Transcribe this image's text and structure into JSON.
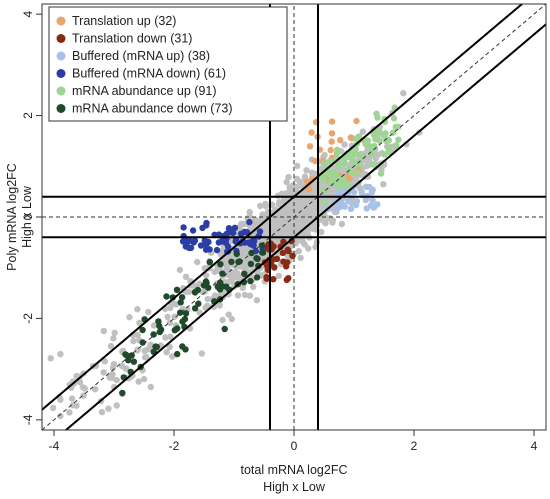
{
  "chart_data": {
    "type": "scatter",
    "xlim": [
      -4.2,
      4.2
    ],
    "ylim": [
      -4.2,
      4.2
    ],
    "xlabel": [
      "total mRNA log2FC",
      "High x Low"
    ],
    "ylabel": [
      "Poly mRNA log2FC",
      "High x Low"
    ],
    "x_ticks": [
      -4,
      -2,
      0,
      2,
      4
    ],
    "y_ticks": [
      -4,
      -2,
      0,
      2,
      4
    ],
    "grid": false,
    "legend_position": "top-left",
    "thresholds": {
      "vertical_solid": [
        -0.4,
        0.4
      ],
      "horizontal_solid": [
        -0.4,
        0.4
      ],
      "dashed_axes": [
        0,
        0
      ],
      "diagonal_offset": 0.4
    },
    "background_color": "#c0c0c0",
    "series": [
      {
        "name": "Translation up (32)",
        "color": "#e8a56e"
      },
      {
        "name": "Translation down (31)",
        "color": "#8b2a12"
      },
      {
        "name": "Buffered (mRNA up) (38)",
        "color": "#a9c1e9"
      },
      {
        "name": "Buffered (mRNA down) (61)",
        "color": "#2a3ea6"
      },
      {
        "name": "mRNA abundance up (91)",
        "color": "#9ed594"
      },
      {
        "name": "mRNA abundance down (73)",
        "color": "#1f4a2b"
      }
    ]
  }
}
